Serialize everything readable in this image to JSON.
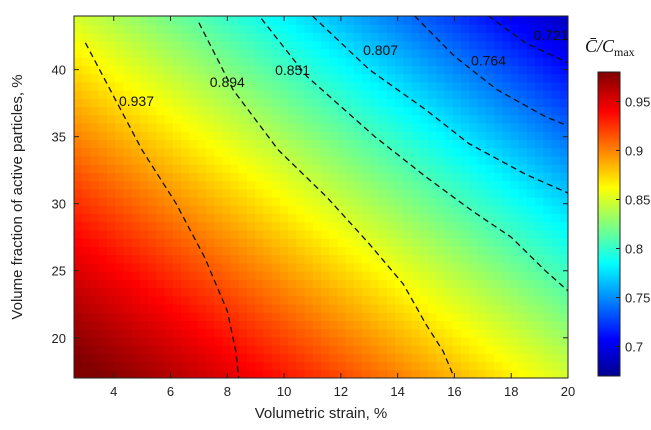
{
  "chart_data": {
    "type": "heatmap",
    "xlabel": "Volumetric strain, %",
    "ylabel": "Volume fraction of active particles, %",
    "xlim": [
      2.6,
      20
    ],
    "ylim": [
      17,
      44
    ],
    "x_ticks": [
      4,
      6,
      8,
      10,
      12,
      14,
      16,
      18,
      20
    ],
    "y_ticks": [
      20,
      25,
      30,
      35,
      40
    ],
    "colorbar": {
      "title_main": "C̄/C",
      "title_sub": "max",
      "range": [
        0.67,
        0.98
      ],
      "ticks": [
        0.7,
        0.75,
        0.8,
        0.85,
        0.9,
        0.95
      ],
      "colormap": "jet"
    },
    "contours": [
      {
        "level": "0.937",
        "points": [
          [
            3.0,
            42.0
          ],
          [
            4.0,
            38.0
          ],
          [
            5.0,
            34.0
          ],
          [
            6.2,
            30.0
          ],
          [
            7.2,
            26.0
          ],
          [
            8.0,
            22.0
          ],
          [
            8.3,
            19.0
          ],
          [
            8.4,
            17.0
          ]
        ]
      },
      {
        "level": "0.894",
        "points": [
          [
            7.0,
            43.5
          ],
          [
            8.2,
            38.5
          ],
          [
            9.8,
            34.0
          ],
          [
            11.5,
            30.5
          ],
          [
            13.0,
            27.0
          ],
          [
            14.2,
            24.0
          ],
          [
            15.0,
            21.0
          ],
          [
            15.6,
            19.0
          ],
          [
            16.0,
            17.0
          ]
        ]
      },
      {
        "level": "0.851",
        "points": [
          [
            9.2,
            43.8
          ],
          [
            10.8,
            39.5
          ],
          [
            13.2,
            35.0
          ],
          [
            15.0,
            32.0
          ],
          [
            16.6,
            29.5
          ],
          [
            18.0,
            27.5
          ],
          [
            19.2,
            25.0
          ],
          [
            20.0,
            23.5
          ]
        ]
      },
      {
        "level": "0.807",
        "points": [
          [
            11.0,
            44.0
          ],
          [
            13.0,
            40.0
          ],
          [
            15.0,
            37.0
          ],
          [
            16.5,
            34.5
          ],
          [
            18.5,
            32.2
          ],
          [
            20.0,
            30.8
          ]
        ]
      },
      {
        "level": "0.764",
        "points": [
          [
            14.6,
            44.0
          ],
          [
            16.0,
            41.0
          ],
          [
            17.5,
            38.5
          ],
          [
            19.2,
            36.5
          ],
          [
            20.0,
            35.8
          ]
        ]
      },
      {
        "level": "0.721",
        "points": [
          [
            17.2,
            44.0
          ],
          [
            18.5,
            42.0
          ],
          [
            20.0,
            40.5
          ]
        ]
      }
    ],
    "contour_label_positions": [
      [
        4.8,
        37.3
      ],
      [
        8.0,
        38.7
      ],
      [
        10.3,
        39.6
      ],
      [
        13.4,
        41.1
      ],
      [
        17.2,
        40.3
      ],
      [
        19.4,
        42.2
      ]
    ]
  }
}
